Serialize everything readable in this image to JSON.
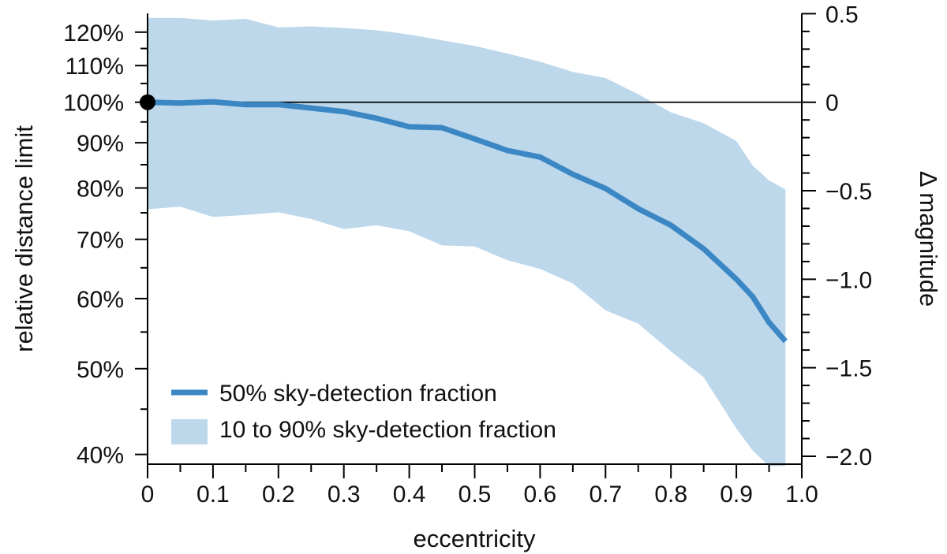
{
  "chart_data": {
    "type": "line",
    "xlabel": "eccentricity",
    "ylabel_left": "relative distance limit",
    "ylabel_right": "Δ magnitude",
    "x_ticks": [
      0,
      0.1,
      0.2,
      0.3,
      0.4,
      0.5,
      0.6,
      0.7,
      0.8,
      0.9,
      1.0
    ],
    "x_tick_labels": [
      "0",
      "0.1",
      "0.2",
      "0.3",
      "0.4",
      "0.5",
      "0.6",
      "0.7",
      "0.8",
      "0.9",
      "1.0"
    ],
    "xlim": [
      0,
      1.0
    ],
    "y_scale": "log",
    "ylim_left_percent": [
      39,
      126
    ],
    "y_ticks_left": [
      40,
      50,
      60,
      70,
      80,
      90,
      100,
      110,
      120
    ],
    "y_tick_labels_left": [
      "40%",
      "50%",
      "60%",
      "70%",
      "80%",
      "90%",
      "100%",
      "110%",
      "120%"
    ],
    "y_ticks_right": [
      0.5,
      0,
      -0.5,
      -1.0,
      -1.5,
      -2.0
    ],
    "y_tick_labels_right": [
      "0.5",
      "0",
      "−0.5",
      "−1.0",
      "−1.5",
      "−2.0"
    ],
    "reference_line_y": 100,
    "reference_point": {
      "x": 0,
      "y": 100
    },
    "series": [
      {
        "name": "50% sky-detection fraction",
        "color": "#3b87c4",
        "x": [
          0,
          0.05,
          0.1,
          0.15,
          0.2,
          0.25,
          0.3,
          0.35,
          0.4,
          0.45,
          0.5,
          0.55,
          0.6,
          0.65,
          0.7,
          0.75,
          0.8,
          0.85,
          0.9,
          0.925,
          0.95,
          0.975
        ],
        "values": [
          100,
          99.8,
          100.1,
          99.4,
          99.4,
          98.5,
          97.6,
          95.9,
          93.8,
          93.6,
          90.9,
          88.2,
          86.7,
          82.9,
          79.9,
          75.8,
          72.6,
          68.3,
          63.1,
          60.3,
          56.4,
          53.7
        ]
      },
      {
        "name": "10 to 90% sky-detection fraction",
        "type": "band",
        "color": "#bdd7eb",
        "x": [
          0,
          0.05,
          0.1,
          0.15,
          0.2,
          0.25,
          0.3,
          0.35,
          0.4,
          0.45,
          0.5,
          0.55,
          0.6,
          0.65,
          0.7,
          0.75,
          0.8,
          0.85,
          0.9,
          0.925,
          0.95,
          0.975
        ],
        "upper": [
          124.5,
          124.5,
          123.7,
          124.2,
          121.5,
          121.8,
          121.3,
          120.6,
          119.3,
          117.5,
          115.8,
          113.5,
          111.1,
          108.2,
          106.5,
          102.1,
          97.4,
          94.7,
          90.4,
          84.8,
          81.6,
          79.7
        ],
        "lower": [
          75.7,
          76.2,
          74.2,
          74.6,
          75.1,
          73.8,
          71.9,
          72.6,
          71.5,
          68.9,
          68.7,
          66.3,
          64.8,
          62.4,
          58.2,
          56.2,
          52.3,
          48.9,
          42.8,
          40.4,
          38.8,
          38.8
        ]
      }
    ]
  }
}
